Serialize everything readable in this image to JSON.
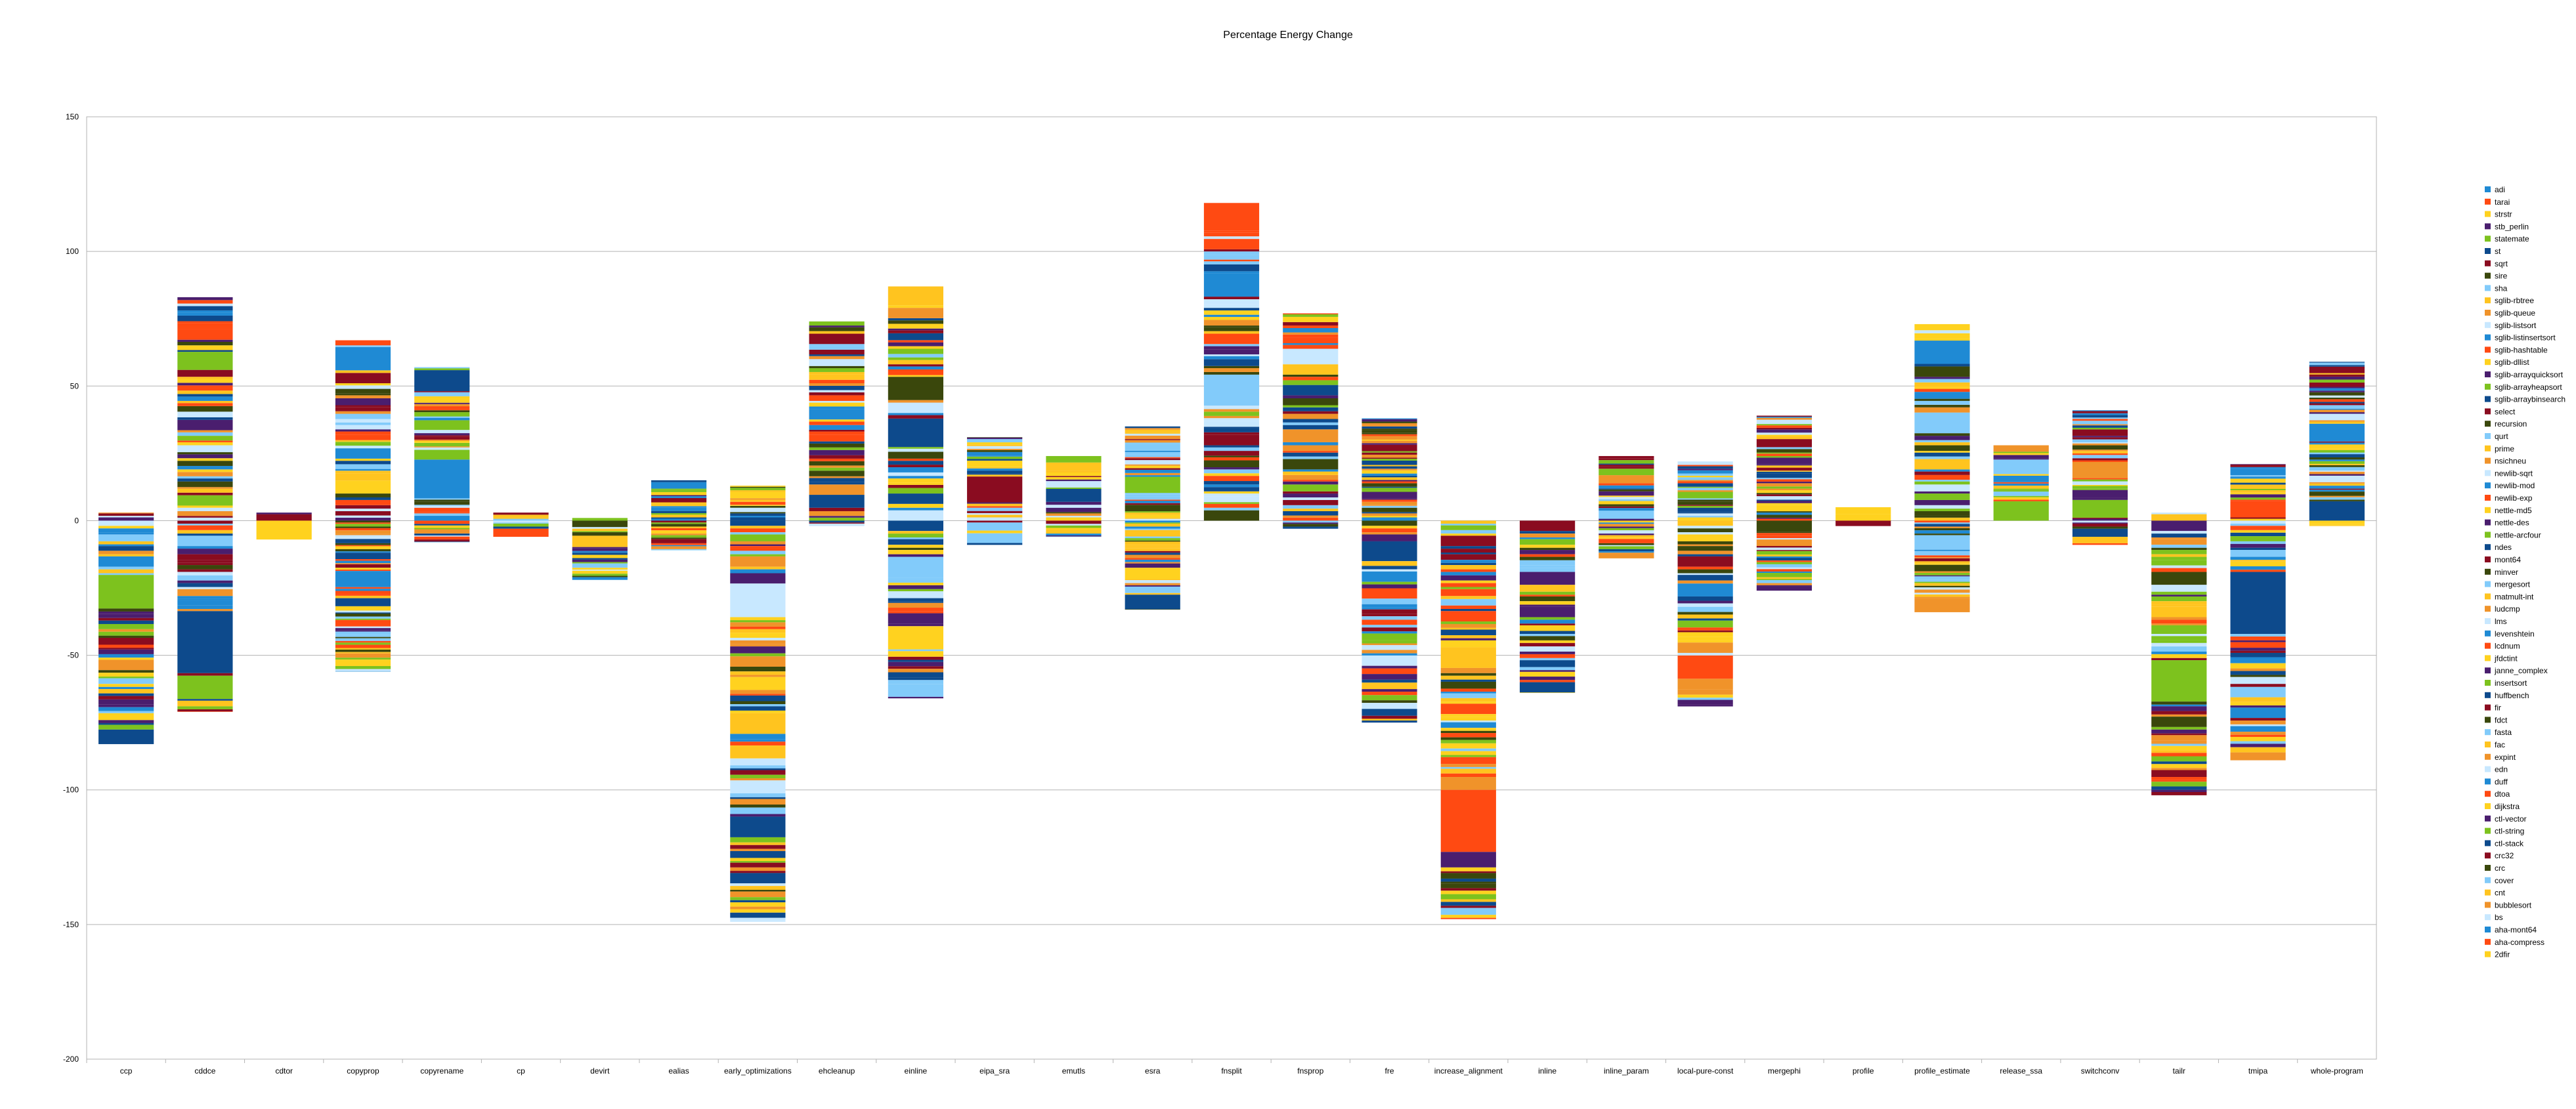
{
  "chart_data": {
    "type": "bar",
    "stacked": true,
    "title": "Percentage Energy Change",
    "xlabel": "",
    "ylabel": "",
    "ylim": [
      -200,
      150
    ],
    "yticks": [
      150,
      100,
      50,
      0,
      -50,
      -100,
      -150,
      -200
    ],
    "grid": true,
    "legend_position": "right",
    "categories": [
      "ccp",
      "cddce",
      "cdtor",
      "copyprop",
      "copyrename",
      "cp",
      "devirt",
      "ealias",
      "early_optimizations",
      "ehcleanup",
      "einline",
      "eipa_sra",
      "emutls",
      "esra",
      "fnsplit",
      "fnsprop",
      "fre",
      "increase_alignment",
      "inline",
      "inline_param",
      "local-pure-const",
      "mergephi",
      "profile",
      "profile_estimate",
      "release_ssa",
      "switchconv",
      "tailr",
      "tmipa",
      "whole-program"
    ],
    "bar_totals": {
      "positive": [
        3,
        83,
        3,
        67,
        57,
        3,
        1,
        15,
        13,
        74,
        87,
        31,
        24,
        35,
        118,
        77,
        38,
        0,
        0,
        24,
        22,
        39,
        5,
        73,
        28,
        41,
        3,
        21,
        59
      ],
      "negative": [
        -83,
        -71,
        -7,
        -56,
        -8,
        -6,
        -22,
        -11,
        -149,
        -2,
        -66,
        -9,
        -6,
        -33,
        0,
        -3,
        -75,
        -148,
        -64,
        -14,
        -69,
        -26,
        -2,
        -34,
        0,
        -9,
        -102,
        -89,
        -2
      ]
    },
    "palette": [
      "#1f8ad4",
      "#ff4a12",
      "#ffd21f",
      "#4a1e6e",
      "#7dc21e",
      "#0d4a8c",
      "#8a0c20",
      "#3a470c",
      "#82cbfa",
      "#ffc41f",
      "#f0932a",
      "#c8e8ff"
    ],
    "series_names": [
      "adi",
      "tarai",
      "strstr",
      "stb_perlin",
      "statemate",
      "st",
      "sqrt",
      "sire",
      "sha",
      "sglib-rbtree",
      "sglib-queue",
      "sglib-listsort",
      "sglib-listinsertsort",
      "sglib-hashtable",
      "sglib-dllist",
      "sglib-arrayquicksort",
      "sglib-arrayheapsort",
      "sglib-arraybinsearch",
      "select",
      "recursion",
      "qurt",
      "prime",
      "nsichneu",
      "newlib-sqrt",
      "newlib-mod",
      "newlib-exp",
      "nettle-md5",
      "nettle-des",
      "nettle-arcfour",
      "ndes",
      "mont64",
      "minver",
      "mergesort",
      "matmult-int",
      "ludcmp",
      "lms",
      "levenshtein",
      "lcdnum",
      "jfdctint",
      "janne_complex",
      "insertsort",
      "huffbench",
      "fir",
      "fdct",
      "fasta",
      "fac",
      "expint",
      "edn",
      "duff",
      "dtoa",
      "dijkstra",
      "ctl-vector",
      "ctl-string",
      "ctl-stack",
      "crc32",
      "crc",
      "cover",
      "cnt",
      "bubblesort",
      "bs",
      "aha-mont64",
      "aha-compress",
      "2dfir"
    ],
    "series_colors": [
      "#1f8ad4",
      "#ff4a12",
      "#ffd21f",
      "#4a1e6e",
      "#7dc21e",
      "#0d4a8c",
      "#8a0c20",
      "#3a470c",
      "#82cbfa",
      "#ffc41f",
      "#f0932a",
      "#c8e8ff",
      "#1f8ad4",
      "#ff4a12",
      "#ffd21f",
      "#4a1e6e",
      "#7dc21e",
      "#0d4a8c",
      "#8a0c20",
      "#3a470c",
      "#82cbfa",
      "#ffc41f",
      "#f0932a",
      "#c8e8ff",
      "#1f8ad4",
      "#ff4a12",
      "#ffd21f",
      "#4a1e6e",
      "#7dc21e",
      "#0d4a8c",
      "#8a0c20",
      "#3a470c",
      "#82cbfa",
      "#ffc41f",
      "#f0932a",
      "#c8e8ff",
      "#1f8ad4",
      "#ff4a12",
      "#ffd21f",
      "#4a1e6e",
      "#7dc21e",
      "#0d4a8c",
      "#8a0c20",
      "#3a470c",
      "#82cbfa",
      "#ffc41f",
      "#f0932a",
      "#c8e8ff",
      "#1f8ad4",
      "#ff4a12",
      "#ffd21f",
      "#4a1e6e",
      "#7dc21e",
      "#0d4a8c",
      "#8a0c20",
      "#3a470c",
      "#82cbfa",
      "#ffc41f",
      "#f0932a",
      "#c8e8ff",
      "#1f8ad4",
      "#ff4a12",
      "#ffd21f"
    ]
  }
}
